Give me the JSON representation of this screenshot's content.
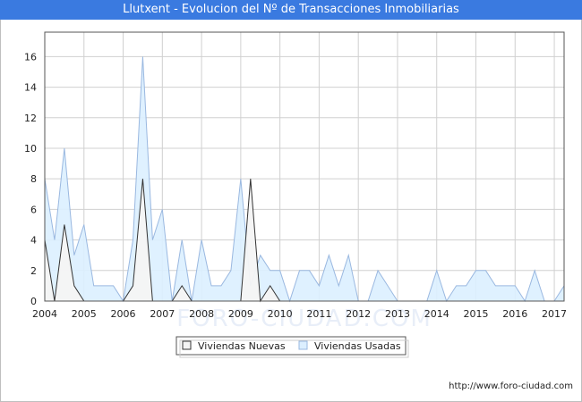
{
  "title": "Llutxent - Evolucion del Nº de Transacciones Inmobiliarias",
  "source": "http://www.foro-ciudad.com",
  "watermark": "FORO-CIUDAD.COM",
  "colors": {
    "title_bar": "#3a7ae0",
    "nuevas_fill": "#f4f4f4",
    "nuevas_line": "#333333",
    "usadas_fill": "#dcefff",
    "usadas_line": "#9ab8e0",
    "grid": "#d0d0d0"
  },
  "chart_data": {
    "type": "area",
    "title": "Llutxent - Evolucion del Nº de Transacciones Inmobiliarias",
    "xlabel": "",
    "ylabel": "",
    "x_ticks": [
      "2004",
      "2005",
      "2006",
      "2007",
      "2008",
      "2009",
      "2010",
      "2011",
      "2012",
      "2013",
      "2014",
      "2015",
      "2016",
      "2017"
    ],
    "x_range": [
      2004,
      2017.25
    ],
    "ylim": [
      0,
      17.6
    ],
    "y_ticks": [
      0,
      2,
      4,
      6,
      8,
      10,
      12,
      14,
      16
    ],
    "grid": true,
    "legend_position": "bottom-center",
    "x": [
      "2004-Q1",
      "2004-Q2",
      "2004-Q3",
      "2004-Q4",
      "2005-Q1",
      "2005-Q2",
      "2005-Q3",
      "2005-Q4",
      "2006-Q1",
      "2006-Q2",
      "2006-Q3",
      "2006-Q4",
      "2007-Q1",
      "2007-Q2",
      "2007-Q3",
      "2007-Q4",
      "2008-Q1",
      "2008-Q2",
      "2008-Q3",
      "2008-Q4",
      "2009-Q1",
      "2009-Q2",
      "2009-Q3",
      "2009-Q4",
      "2010-Q1",
      "2010-Q2",
      "2010-Q3",
      "2010-Q4",
      "2011-Q1",
      "2011-Q2",
      "2011-Q3",
      "2011-Q4",
      "2012-Q1",
      "2012-Q2",
      "2012-Q3",
      "2012-Q4",
      "2013-Q1",
      "2013-Q2",
      "2013-Q3",
      "2013-Q4",
      "2014-Q1",
      "2014-Q2",
      "2014-Q3",
      "2014-Q4",
      "2015-Q1",
      "2015-Q2",
      "2015-Q3",
      "2015-Q4",
      "2016-Q1",
      "2016-Q2",
      "2016-Q3",
      "2016-Q4",
      "2017-Q1",
      "2017-Q2"
    ],
    "series": [
      {
        "name": "Viviendas Nuevas",
        "values": [
          4,
          0,
          5,
          1,
          0,
          0,
          0,
          0,
          0,
          1,
          8,
          0,
          0,
          0,
          1,
          0,
          0,
          0,
          0,
          0,
          0,
          8,
          0,
          1,
          0,
          0,
          0,
          0,
          0,
          0,
          0,
          0,
          0,
          0,
          0,
          0,
          0,
          0,
          0,
          0,
          0,
          0,
          0,
          0,
          0,
          0,
          0,
          0,
          0,
          0,
          0,
          0,
          0,
          0
        ]
      },
      {
        "name": "Viviendas Usadas",
        "values": [
          8,
          4,
          10,
          3,
          5,
          1,
          1,
          1,
          0,
          4,
          16,
          4,
          6,
          0,
          4,
          0,
          4,
          1,
          1,
          2,
          8,
          1,
          3,
          2,
          2,
          0,
          2,
          2,
          1,
          3,
          1,
          3,
          0,
          0,
          2,
          1,
          0,
          0,
          0,
          0,
          2,
          0,
          1,
          1,
          2,
          2,
          1,
          1,
          1,
          0,
          2,
          0,
          0,
          1
        ]
      }
    ]
  }
}
